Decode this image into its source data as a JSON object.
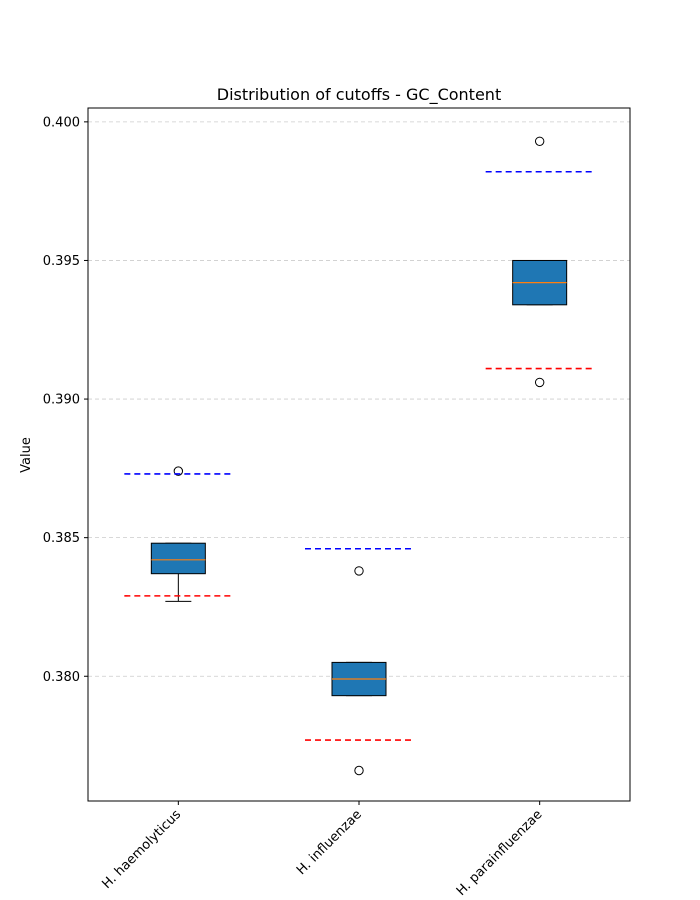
{
  "chart_data": {
    "type": "box",
    "title": "Distribution of cutoffs - GC_Content",
    "xlabel": "",
    "ylabel": "Value",
    "ylim": [
      0.3755,
      0.4005
    ],
    "yticks": [
      0.38,
      0.385,
      0.39,
      0.395,
      0.4
    ],
    "ytick_labels": [
      "0.380",
      "0.385",
      "0.390",
      "0.395",
      "0.400"
    ],
    "grid": "horizontal dashed",
    "box_color": "#1f77b4",
    "median_color": "#ff7f0e",
    "upper_cutoff_color": "#0000ff",
    "lower_cutoff_color": "#ff0000",
    "categories": [
      "H. haemolyticus",
      "H. influenzae",
      "H. parainfluenzae"
    ],
    "boxes": [
      {
        "name": "H. haemolyticus",
        "whisker_low": 0.3827,
        "q1": 0.3837,
        "median": 0.3842,
        "q3": 0.3848,
        "whisker_high": 0.3848,
        "outliers": [
          0.3874
        ],
        "upper_cutoff": 0.3873,
        "lower_cutoff": 0.3829
      },
      {
        "name": "H. influenzae",
        "whisker_low": 0.3793,
        "q1": 0.3793,
        "median": 0.3799,
        "q3": 0.3805,
        "whisker_high": 0.3805,
        "outliers": [
          0.3838,
          0.3766
        ],
        "upper_cutoff": 0.3846,
        "lower_cutoff": 0.3777
      },
      {
        "name": "H. parainfluenzae",
        "whisker_low": 0.3934,
        "q1": 0.3934,
        "median": 0.3942,
        "q3": 0.395,
        "whisker_high": 0.395,
        "outliers": [
          0.3993,
          0.3906
        ],
        "upper_cutoff": 0.3982,
        "lower_cutoff": 0.3911
      }
    ]
  }
}
